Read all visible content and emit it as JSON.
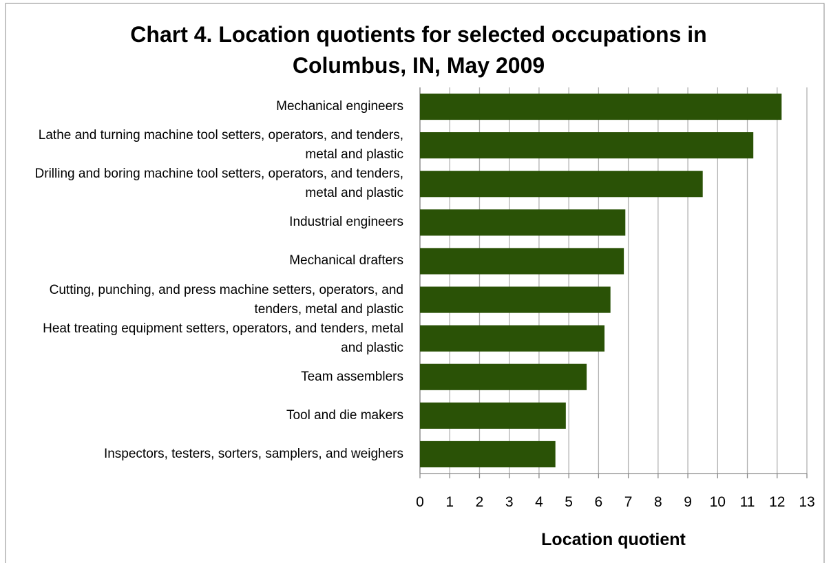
{
  "chart_data": {
    "type": "bar",
    "orientation": "horizontal",
    "title": "Chart 4. Location quotients for selected occupations in Columbus, IN, May 2009",
    "x_label": "Location quotient",
    "categories": [
      "Mechanical engineers",
      "Lathe and turning machine tool setters, operators, and tenders, metal and plastic",
      "Drilling and boring machine tool setters, operators, and tenders, metal and plastic",
      "Industrial engineers",
      "Mechanical drafters",
      "Cutting, punching, and press machine setters, operators, and tenders, metal and plastic",
      "Heat treating equipment setters, operators, and tenders, metal and plastic",
      "Team assemblers",
      "Tool and die makers",
      "Inspectors, testers, sorters, samplers, and weighers"
    ],
    "values": [
      12.15,
      11.2,
      9.5,
      6.9,
      6.85,
      6.4,
      6.2,
      5.6,
      4.9,
      4.55
    ],
    "color": "#2a5206",
    "xlim": [
      0,
      13
    ],
    "xticks": [
      0,
      1,
      2,
      3,
      4,
      5,
      6,
      7,
      8,
      9,
      10,
      11,
      12,
      13
    ],
    "grid": true
  }
}
